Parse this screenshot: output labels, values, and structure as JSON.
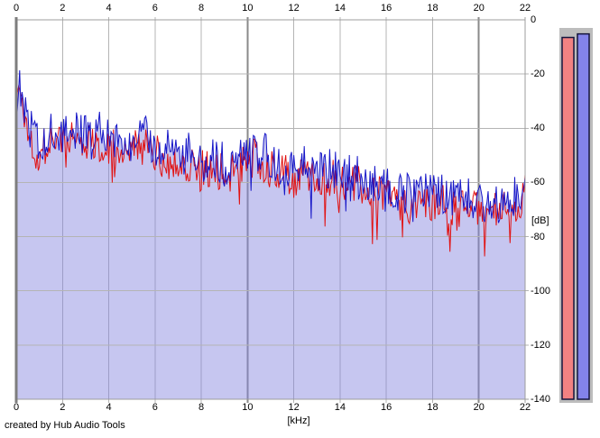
{
  "page": {
    "credit": "created by Hub Audio Tools"
  },
  "axes": {
    "x_unit_label": "[kHz]",
    "y_unit_label": "[dB]",
    "x_ticks": [
      0,
      2,
      4,
      6,
      8,
      10,
      12,
      14,
      16,
      18,
      20,
      22
    ],
    "y_ticks": [
      0,
      -20,
      -40,
      -60,
      -80,
      -100,
      -120,
      -140
    ]
  },
  "meters": {
    "range_db": [
      0,
      -140
    ],
    "track_color": "#bdbdbd",
    "outline_color": "#14143c",
    "bars": [
      {
        "name": "left-channel-level",
        "db": -6.5,
        "color": "#f28282"
      },
      {
        "name": "right-channel-level",
        "db": -5.2,
        "color": "#8383ea"
      }
    ]
  },
  "chart_data": {
    "type": "area",
    "title": "",
    "xlabel": "[kHz]",
    "ylabel": "[dB]",
    "xlim": [
      0,
      22
    ],
    "ylim": [
      -140,
      0
    ],
    "grid": true,
    "x_gridline_step_khz": 2,
    "y_gridline_step_db": 20,
    "major_x_gridlines_khz": [
      0,
      10,
      20
    ],
    "legend": "none",
    "series": [
      {
        "name": "left-channel-spectrum",
        "color": "#e11212",
        "envelope": [
          [
            0,
            -38
          ],
          [
            0.1,
            -22
          ],
          [
            0.3,
            -32
          ],
          [
            0.6,
            -42
          ],
          [
            1,
            -49
          ],
          [
            1.3,
            -44
          ],
          [
            1.6,
            -41
          ],
          [
            2,
            -45
          ],
          [
            2.4,
            -42
          ],
          [
            3,
            -44
          ],
          [
            3.5,
            -43
          ],
          [
            4,
            -46
          ],
          [
            4.5,
            -44
          ],
          [
            5,
            -47
          ],
          [
            5.5,
            -45
          ],
          [
            6,
            -48
          ],
          [
            6.5,
            -50
          ],
          [
            7,
            -52
          ],
          [
            7.5,
            -51
          ],
          [
            8,
            -54
          ],
          [
            8.5,
            -53
          ],
          [
            9,
            -55
          ],
          [
            9.5,
            -54
          ],
          [
            10,
            -51
          ],
          [
            10.3,
            -49
          ],
          [
            10.8,
            -52
          ],
          [
            11,
            -54
          ],
          [
            11.5,
            -55
          ],
          [
            12,
            -58
          ],
          [
            12.5,
            -54
          ],
          [
            13,
            -57
          ],
          [
            13.5,
            -56
          ],
          [
            14,
            -58
          ],
          [
            14.5,
            -59
          ],
          [
            15,
            -60
          ],
          [
            15.5,
            -62
          ],
          [
            16,
            -64
          ],
          [
            16.5,
            -65
          ],
          [
            17,
            -66
          ],
          [
            17.5,
            -66
          ],
          [
            18,
            -67
          ],
          [
            18.5,
            -67
          ],
          [
            19,
            -68
          ],
          [
            19.5,
            -68
          ],
          [
            20,
            -69
          ],
          [
            20.5,
            -69
          ],
          [
            21,
            -69
          ],
          [
            21.5,
            -68
          ],
          [
            21.9,
            -64
          ],
          [
            22,
            -60
          ]
        ],
        "noise": {
          "up_db": 6,
          "down_db": 9,
          "spike_probability": 0.08,
          "spike_extra_db": 18
        }
      },
      {
        "name": "right-channel-spectrum",
        "color": "#1717c8",
        "envelope": [
          [
            0,
            -36
          ],
          [
            0.1,
            -19
          ],
          [
            0.3,
            -30
          ],
          [
            0.6,
            -40
          ],
          [
            1,
            -47
          ],
          [
            1.3,
            -42
          ],
          [
            1.6,
            -39
          ],
          [
            2,
            -43
          ],
          [
            2.4,
            -40
          ],
          [
            3,
            -42
          ],
          [
            3.5,
            -41
          ],
          [
            4,
            -44
          ],
          [
            4.5,
            -42
          ],
          [
            5,
            -45
          ],
          [
            5.5,
            -43
          ],
          [
            6,
            -46
          ],
          [
            6.5,
            -48
          ],
          [
            7,
            -50
          ],
          [
            7.5,
            -49
          ],
          [
            8,
            -52
          ],
          [
            8.5,
            -51
          ],
          [
            9,
            -53
          ],
          [
            9.5,
            -52
          ],
          [
            10,
            -49
          ],
          [
            10.3,
            -47
          ],
          [
            10.8,
            -50
          ],
          [
            11,
            -52
          ],
          [
            11.5,
            -53
          ],
          [
            12,
            -56
          ],
          [
            12.5,
            -52
          ],
          [
            13,
            -55
          ],
          [
            13.5,
            -54
          ],
          [
            14,
            -56
          ],
          [
            14.5,
            -57
          ],
          [
            15,
            -58
          ],
          [
            15.5,
            -60
          ],
          [
            16,
            -62
          ],
          [
            16.5,
            -63
          ],
          [
            17,
            -64
          ],
          [
            17.5,
            -64
          ],
          [
            18,
            -65
          ],
          [
            18.5,
            -65
          ],
          [
            19,
            -66
          ],
          [
            19.5,
            -66
          ],
          [
            20,
            -67
          ],
          [
            20.5,
            -67
          ],
          [
            21,
            -67
          ],
          [
            21.5,
            -66
          ],
          [
            21.9,
            -62
          ],
          [
            22,
            -58
          ]
        ],
        "noise": {
          "up_db": 8,
          "down_db": 8,
          "spike_probability": 0.05,
          "spike_extra_db": 15
        }
      }
    ],
    "area_fill": {
      "under_series": "right-channel-spectrum",
      "color": "rgba(128,128,222,0.45)"
    }
  },
  "style": {
    "plot_bg": "#ffffff",
    "grid_minor_color": "#b4b4b4",
    "grid_major_color": "#8a8a8a",
    "border_color": "#9c9c9c",
    "left_axis_color": "#7e7e7e"
  },
  "render": {
    "seed": 1337,
    "step_khz": 0.05
  }
}
